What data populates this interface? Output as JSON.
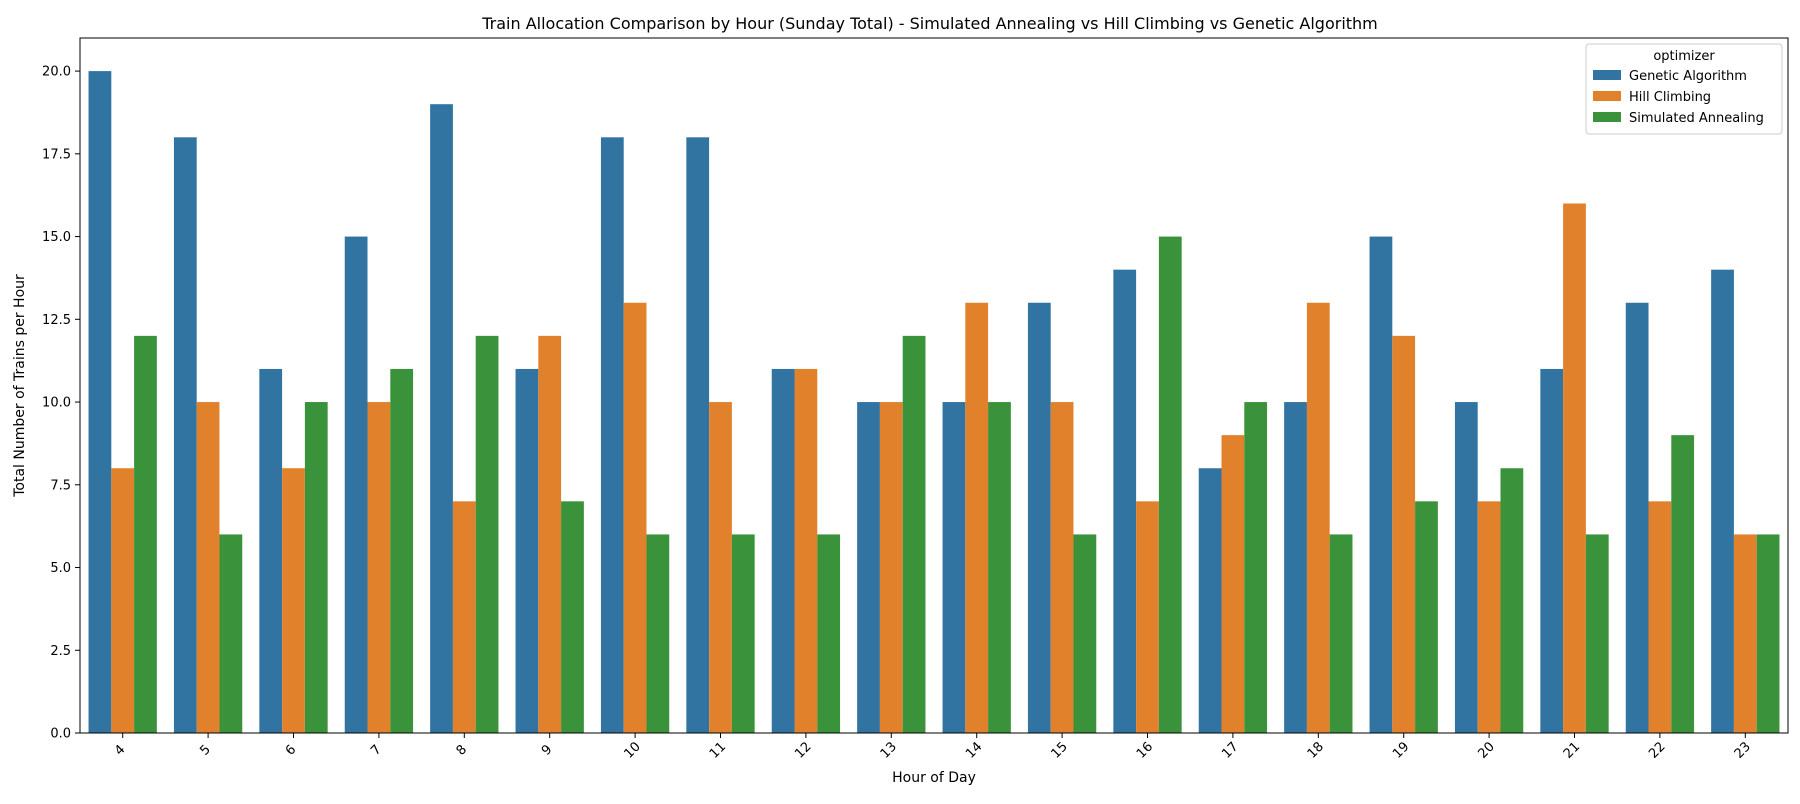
{
  "chart_data": {
    "type": "bar",
    "title": "Train Allocation Comparison by Hour (Sunday Total) - Simulated Annealing vs Hill Climbing vs Genetic Algorithm",
    "xlabel": "Hour of Day",
    "ylabel": "Total Number of Trains per Hour",
    "categories": [
      "4",
      "5",
      "6",
      "7",
      "8",
      "9",
      "10",
      "11",
      "12",
      "13",
      "14",
      "15",
      "16",
      "17",
      "18",
      "19",
      "20",
      "21",
      "22",
      "23"
    ],
    "ylim": [
      0,
      21
    ],
    "yticks": [
      "0.0",
      "2.5",
      "5.0",
      "7.5",
      "10.0",
      "12.5",
      "15.0",
      "17.5",
      "20.0"
    ],
    "legend_title": "optimizer",
    "legend_position": "top-right",
    "grid": false,
    "series": [
      {
        "name": "Genetic Algorithm",
        "color": "#3274a1",
        "values": [
          20,
          18,
          11,
          15,
          19,
          11,
          18,
          18,
          11,
          10,
          10,
          13,
          14,
          8,
          10,
          15,
          10,
          11,
          13,
          14
        ]
      },
      {
        "name": "Hill Climbing",
        "color": "#e1812c",
        "values": [
          8,
          10,
          8,
          10,
          7,
          12,
          13,
          10,
          11,
          10,
          13,
          10,
          7,
          9,
          13,
          12,
          7,
          16,
          7,
          6
        ]
      },
      {
        "name": "Simulated Annealing",
        "color": "#3a923a",
        "values": [
          12,
          6,
          10,
          11,
          12,
          7,
          6,
          6,
          6,
          12,
          10,
          6,
          15,
          10,
          6,
          7,
          8,
          6,
          9,
          6
        ]
      }
    ]
  }
}
